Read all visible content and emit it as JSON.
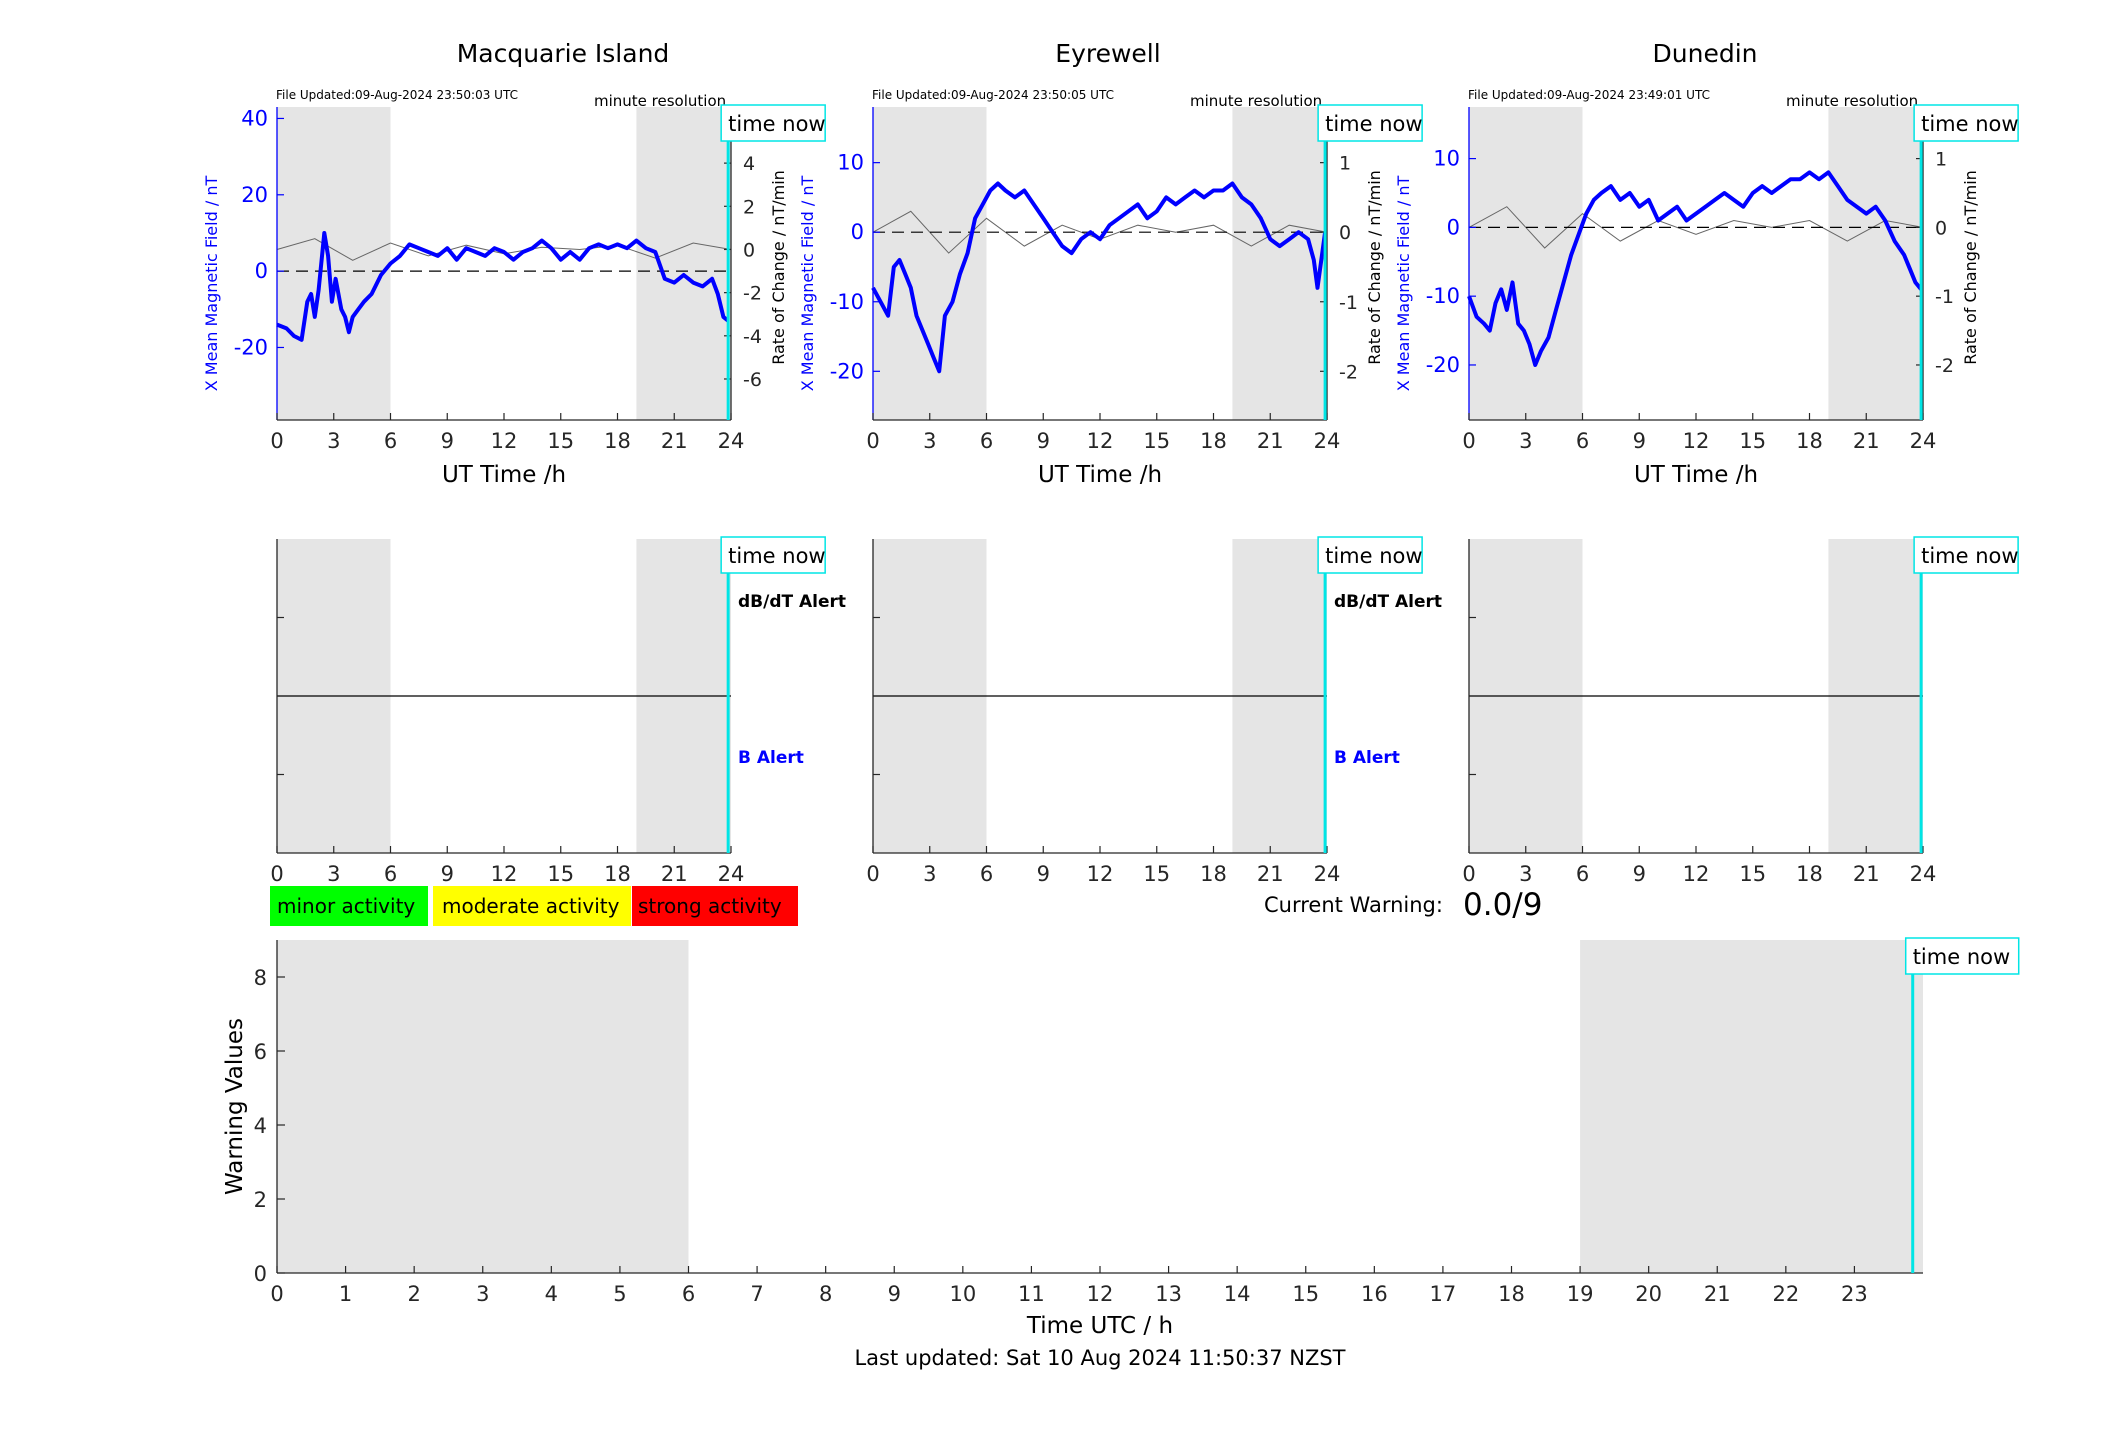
{
  "time_now_label": "time now",
  "stations": [
    {
      "name": "Macquarie Island",
      "file_updated": "File Updated:09-Aug-2024 23:50:03 UTC",
      "resolution": "minute resolution",
      "alert_labels": {
        "dbdt": "dB/dT Alert",
        "b": "B Alert"
      }
    },
    {
      "name": "Eyrewell",
      "file_updated": "File Updated:09-Aug-2024 23:50:05 UTC",
      "resolution": "minute resolution",
      "alert_labels": {
        "dbdt": "dB/dT Alert",
        "b": "B Alert"
      }
    },
    {
      "name": "Dunedin",
      "file_updated": "File Updated:09-Aug-2024 23:49:01 UTC",
      "resolution": "minute resolution",
      "alert_labels": {
        "dbdt": "",
        "b": ""
      }
    }
  ],
  "legend": [
    {
      "label": "minor activity",
      "color": "#00ff00"
    },
    {
      "label": "moderate activity",
      "color": "#ffff00"
    },
    {
      "label": "strong activity",
      "color": "#ff0000"
    }
  ],
  "current_warning": {
    "label": "Current Warning:",
    "value": "0.0/9"
  },
  "footer": "Last updated: Sat 10 Aug 2024 11:50:37 NZST",
  "colors": {
    "mean_field": "#0000ff",
    "rate": "#666666",
    "night_shade": "#e5e5e5",
    "time_now": "#00e5e5"
  },
  "chart_data": [
    {
      "type": "line",
      "station": "Macquarie Island",
      "title": "Macquarie Island",
      "xlabel": "UT Time /h",
      "ylabel": "X Mean Magnetic Field / nT",
      "y2label": "Rate of Change / nT/min",
      "xlim": [
        0,
        24
      ],
      "xticks": [
        0,
        3,
        6,
        9,
        12,
        15,
        18,
        21,
        24
      ],
      "ylim": [
        -39,
        43
      ],
      "yticks": [
        -20,
        0,
        20,
        40
      ],
      "y2lim": [
        -7.9,
        6.6
      ],
      "y2ticks": [
        -6,
        -4,
        -2,
        0,
        2,
        4,
        6
      ],
      "shaded_hours": [
        [
          0,
          6
        ],
        [
          19,
          24
        ]
      ],
      "time_now": 23.85,
      "series": [
        {
          "axis": "left",
          "x": [
            0,
            0.5,
            0.9,
            1.3,
            1.6,
            1.8,
            2.0,
            2.2,
            2.5,
            2.7,
            2.9,
            3.1,
            3.4,
            3.6,
            3.8,
            4.0,
            4.3,
            4.6,
            5.0,
            5.5,
            6.0,
            6.5,
            7.0,
            7.5,
            8.0,
            8.5,
            9.0,
            9.5,
            10.0,
            10.5,
            11.0,
            11.5,
            12.0,
            12.5,
            13.0,
            13.5,
            14.0,
            14.5,
            15.0,
            15.5,
            16.0,
            16.5,
            17.0,
            17.5,
            18.0,
            18.5,
            19.0,
            19.5,
            20.0,
            20.5,
            21.0,
            21.5,
            22.0,
            22.5,
            23.0,
            23.3,
            23.6,
            23.85
          ],
          "values": [
            -14,
            -15,
            -17,
            -18,
            -8,
            -6,
            -12,
            -5,
            10,
            4,
            -8,
            -2,
            -10,
            -12,
            -16,
            -12,
            -10,
            -8,
            -6,
            -1,
            2,
            4,
            7,
            6,
            5,
            4,
            6,
            3,
            6,
            5,
            4,
            6,
            5,
            3,
            5,
            6,
            8,
            6,
            3,
            5,
            3,
            6,
            7,
            6,
            7,
            6,
            8,
            6,
            5,
            -2,
            -3,
            -1,
            -3,
            -4,
            -2,
            -6,
            -12,
            -13
          ]
        },
        {
          "axis": "right",
          "name": "rate",
          "x": [
            0,
            2,
            4,
            6,
            8,
            10,
            12,
            14,
            16,
            18,
            20,
            22,
            24
          ],
          "values": [
            0,
            0.5,
            -0.5,
            0.3,
            -0.3,
            0.2,
            -0.2,
            0.1,
            0,
            0.2,
            -0.4,
            0.3,
            0
          ]
        }
      ]
    },
    {
      "type": "line",
      "station": "Eyrewell",
      "title": "Eyrewell",
      "xlabel": "UT Time /h",
      "ylabel": "X Mean Magnetic Field / nT",
      "y2label": "Rate of Change / nT/min",
      "xlim": [
        0,
        24
      ],
      "xticks": [
        0,
        3,
        6,
        9,
        12,
        15,
        18,
        21,
        24
      ],
      "ylim": [
        -27,
        18
      ],
      "yticks": [
        -20,
        -10,
        0,
        10
      ],
      "y2lim": [
        -2.7,
        1.8
      ],
      "y2ticks": [
        -2,
        -1,
        0,
        1
      ],
      "shaded_hours": [
        [
          0,
          6
        ],
        [
          19,
          24
        ]
      ],
      "time_now": 23.9,
      "series": [
        {
          "axis": "left",
          "x": [
            0,
            0.4,
            0.8,
            1.1,
            1.4,
            1.7,
            2.0,
            2.3,
            2.6,
            2.9,
            3.2,
            3.5,
            3.8,
            4.2,
            4.6,
            5.0,
            5.4,
            5.8,
            6.2,
            6.6,
            7.0,
            7.5,
            8.0,
            8.5,
            9.0,
            9.5,
            10.0,
            10.5,
            11.0,
            11.5,
            12.0,
            12.5,
            13.0,
            13.5,
            14.0,
            14.5,
            15.0,
            15.5,
            16.0,
            16.5,
            17.0,
            17.5,
            18.0,
            18.5,
            19.0,
            19.5,
            20.0,
            20.5,
            21.0,
            21.5,
            22.0,
            22.5,
            23.0,
            23.3,
            23.5,
            23.9
          ],
          "values": [
            -8,
            -10,
            -12,
            -5,
            -4,
            -6,
            -8,
            -12,
            -14,
            -16,
            -18,
            -20,
            -12,
            -10,
            -6,
            -3,
            2,
            4,
            6,
            7,
            6,
            5,
            6,
            4,
            2,
            0,
            -2,
            -3,
            -1,
            0,
            -1,
            1,
            2,
            3,
            4,
            2,
            3,
            5,
            4,
            5,
            6,
            5,
            6,
            6,
            7,
            5,
            4,
            2,
            -1,
            -2,
            -1,
            0,
            -1,
            -4,
            -8,
            0
          ]
        },
        {
          "axis": "right",
          "name": "rate",
          "x": [
            0,
            2,
            4,
            6,
            8,
            10,
            12,
            14,
            16,
            18,
            20,
            22,
            24
          ],
          "values": [
            0,
            0.3,
            -0.3,
            0.2,
            -0.2,
            0.1,
            -0.1,
            0.1,
            0,
            0.1,
            -0.2,
            0.1,
            0
          ]
        }
      ]
    },
    {
      "type": "line",
      "station": "Dunedin",
      "title": "Dunedin",
      "xlabel": "UT Time /h",
      "ylabel": "X Mean Magnetic Field / nT",
      "y2label": "Rate of Change / nT/min",
      "xlim": [
        0,
        24
      ],
      "xticks": [
        0,
        3,
        6,
        9,
        12,
        15,
        18,
        21,
        24
      ],
      "ylim": [
        -28,
        17.5
      ],
      "yticks": [
        -20,
        -10,
        0,
        10
      ],
      "y2lim": [
        -2.8,
        1.75
      ],
      "y2ticks": [
        -2,
        -1,
        0,
        1
      ],
      "shaded_hours": [
        [
          0,
          6
        ],
        [
          19,
          24
        ]
      ],
      "time_now": 23.9,
      "series": [
        {
          "axis": "left",
          "x": [
            0,
            0.4,
            0.8,
            1.1,
            1.4,
            1.7,
            2.0,
            2.3,
            2.6,
            2.9,
            3.2,
            3.5,
            3.8,
            4.2,
            4.6,
            5.0,
            5.4,
            5.8,
            6.2,
            6.6,
            7.0,
            7.5,
            8.0,
            8.5,
            9.0,
            9.5,
            10.0,
            10.5,
            11.0,
            11.5,
            12.0,
            12.5,
            13.0,
            13.5,
            14.0,
            14.5,
            15.0,
            15.5,
            16.0,
            16.5,
            17.0,
            17.5,
            18.0,
            18.5,
            19.0,
            19.5,
            20.0,
            20.5,
            21.0,
            21.5,
            22.0,
            22.5,
            23.0,
            23.3,
            23.6,
            23.9
          ],
          "values": [
            -10,
            -13,
            -14,
            -15,
            -11,
            -9,
            -12,
            -8,
            -14,
            -15,
            -17,
            -20,
            -18,
            -16,
            -12,
            -8,
            -4,
            -1,
            2,
            4,
            5,
            6,
            4,
            5,
            3,
            4,
            1,
            2,
            3,
            1,
            2,
            3,
            4,
            5,
            4,
            3,
            5,
            6,
            5,
            6,
            7,
            7,
            8,
            7,
            8,
            6,
            4,
            3,
            2,
            3,
            1,
            -2,
            -4,
            -6,
            -8,
            -9
          ]
        },
        {
          "axis": "right",
          "name": "rate",
          "x": [
            0,
            2,
            4,
            6,
            8,
            10,
            12,
            14,
            16,
            18,
            20,
            22,
            24
          ],
          "values": [
            0,
            0.3,
            -0.3,
            0.2,
            -0.2,
            0.1,
            -0.1,
            0.1,
            0,
            0.1,
            -0.2,
            0.1,
            0
          ]
        }
      ]
    },
    {
      "type": "line",
      "panel": "alerts",
      "xlim": [
        0,
        24
      ],
      "xticks": [
        0,
        3,
        6,
        9,
        12,
        15,
        18,
        21,
        24
      ],
      "ylim": [
        -1,
        1
      ],
      "level": 0,
      "shaded_hours": [
        [
          0,
          6
        ],
        [
          19,
          24
        ]
      ]
    },
    {
      "type": "bar",
      "panel": "warning",
      "xlabel": "Time UTC / h",
      "ylabel": "Warning Values",
      "xlim": [
        0,
        24
      ],
      "xticks": [
        0,
        1,
        2,
        3,
        4,
        5,
        6,
        7,
        8,
        9,
        10,
        11,
        12,
        13,
        14,
        15,
        16,
        17,
        18,
        19,
        20,
        21,
        22,
        23
      ],
      "ylim": [
        0,
        9
      ],
      "yticks": [
        0,
        2,
        4,
        6,
        8
      ],
      "shaded_hours": [
        [
          0,
          6
        ],
        [
          19,
          24
        ]
      ],
      "time_now": 23.85,
      "values": []
    }
  ]
}
